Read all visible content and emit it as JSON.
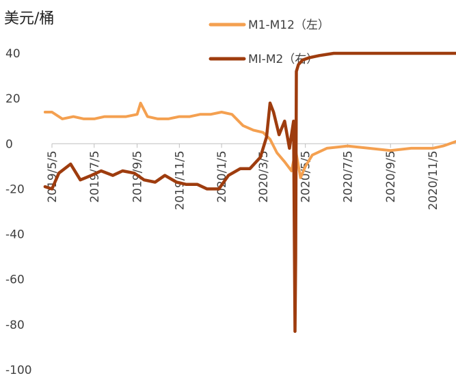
{
  "chart_data": {
    "type": "line",
    "unit_label": "美元/桶",
    "y_axis": {
      "min": -100,
      "max": 40,
      "step": 20,
      "ticks": [
        "40",
        "20",
        "0",
        "-20",
        "-40",
        "-60",
        "-80",
        "-100"
      ]
    },
    "x_axis": {
      "start": "2019/4/25",
      "end": "2020/12/10",
      "ticks": [
        "2019/5/5",
        "2019/7/5",
        "2019/9/5",
        "2019/11/5",
        "2020/1/5",
        "2020/3/5",
        "2020/5/5",
        "2020/7/5",
        "2020/9/5",
        "2020/11/5"
      ]
    },
    "grid": false,
    "legend_position": "top",
    "series": [
      {
        "name": "M1-M12（左）",
        "color": "#F4A050",
        "x": [
          "2019/4/25",
          "2019/5/5",
          "2019/5/20",
          "2019/6/5",
          "2019/6/20",
          "2019/7/5",
          "2019/7/20",
          "2019/8/5",
          "2019/8/20",
          "2019/9/5",
          "2019/9/10",
          "2019/9/20",
          "2019/10/5",
          "2019/10/20",
          "2019/11/5",
          "2019/11/20",
          "2019/12/5",
          "2019/12/20",
          "2020/1/5",
          "2020/1/20",
          "2020/2/5",
          "2020/2/20",
          "2020/3/5",
          "2020/3/15",
          "2020/3/25",
          "2020/4/5",
          "2020/4/15",
          "2020/4/21",
          "2020/4/28",
          "2020/5/5",
          "2020/5/15",
          "2020/6/5",
          "2020/7/5",
          "2020/8/5",
          "2020/9/5",
          "2020/10/5",
          "2020/11/5",
          "2020/11/20",
          "2020/12/10"
        ],
        "y": [
          14,
          14,
          11,
          12,
          11,
          11,
          12,
          12,
          12,
          13,
          18,
          12,
          11,
          11,
          12,
          12,
          13,
          13,
          14,
          13,
          8,
          6,
          5,
          2,
          -4,
          -8,
          -12,
          -3,
          -15,
          -10,
          -5,
          -2,
          -1,
          -2,
          -3,
          -2,
          -2,
          -1,
          1
        ]
      },
      {
        "name": "MI-M2（右）",
        "color": "#9E3C0E",
        "x": [
          "2019/4/25",
          "2019/5/5",
          "2019/5/15",
          "2019/6/1",
          "2019/6/15",
          "2019/7/1",
          "2019/7/15",
          "2019/8/1",
          "2019/8/15",
          "2019/9/1",
          "2019/9/15",
          "2019/10/1",
          "2019/10/15",
          "2019/11/1",
          "2019/11/15",
          "2019/12/1",
          "2019/12/15",
          "2020/1/1",
          "2020/1/15",
          "2020/2/1",
          "2020/2/15",
          "2020/3/1",
          "2020/3/10",
          "2020/3/15",
          "2020/3/20",
          "2020/3/28",
          "2020/4/5",
          "2020/4/12",
          "2020/4/18",
          "2020/4/20",
          "2020/4/21",
          "2020/4/22",
          "2020/4/25",
          "2020/5/1",
          "2020/5/10",
          "2020/5/25",
          "2020/6/15",
          "2020/7/5",
          "2020/8/5",
          "2020/9/5",
          "2020/10/5",
          "2020/11/5",
          "2020/12/10"
        ],
        "y": [
          -19,
          -20,
          -13,
          -9,
          -16,
          -14,
          -12,
          -14,
          -12,
          -13,
          -16,
          -17,
          -14,
          -17,
          -18,
          -18,
          -20,
          -20,
          -14,
          -11,
          -11,
          -6,
          3,
          18,
          14,
          4,
          10,
          -2,
          10,
          -83,
          -50,
          32,
          35,
          37,
          38,
          39,
          40,
          40,
          40,
          40,
          40,
          40,
          40
        ]
      }
    ]
  }
}
